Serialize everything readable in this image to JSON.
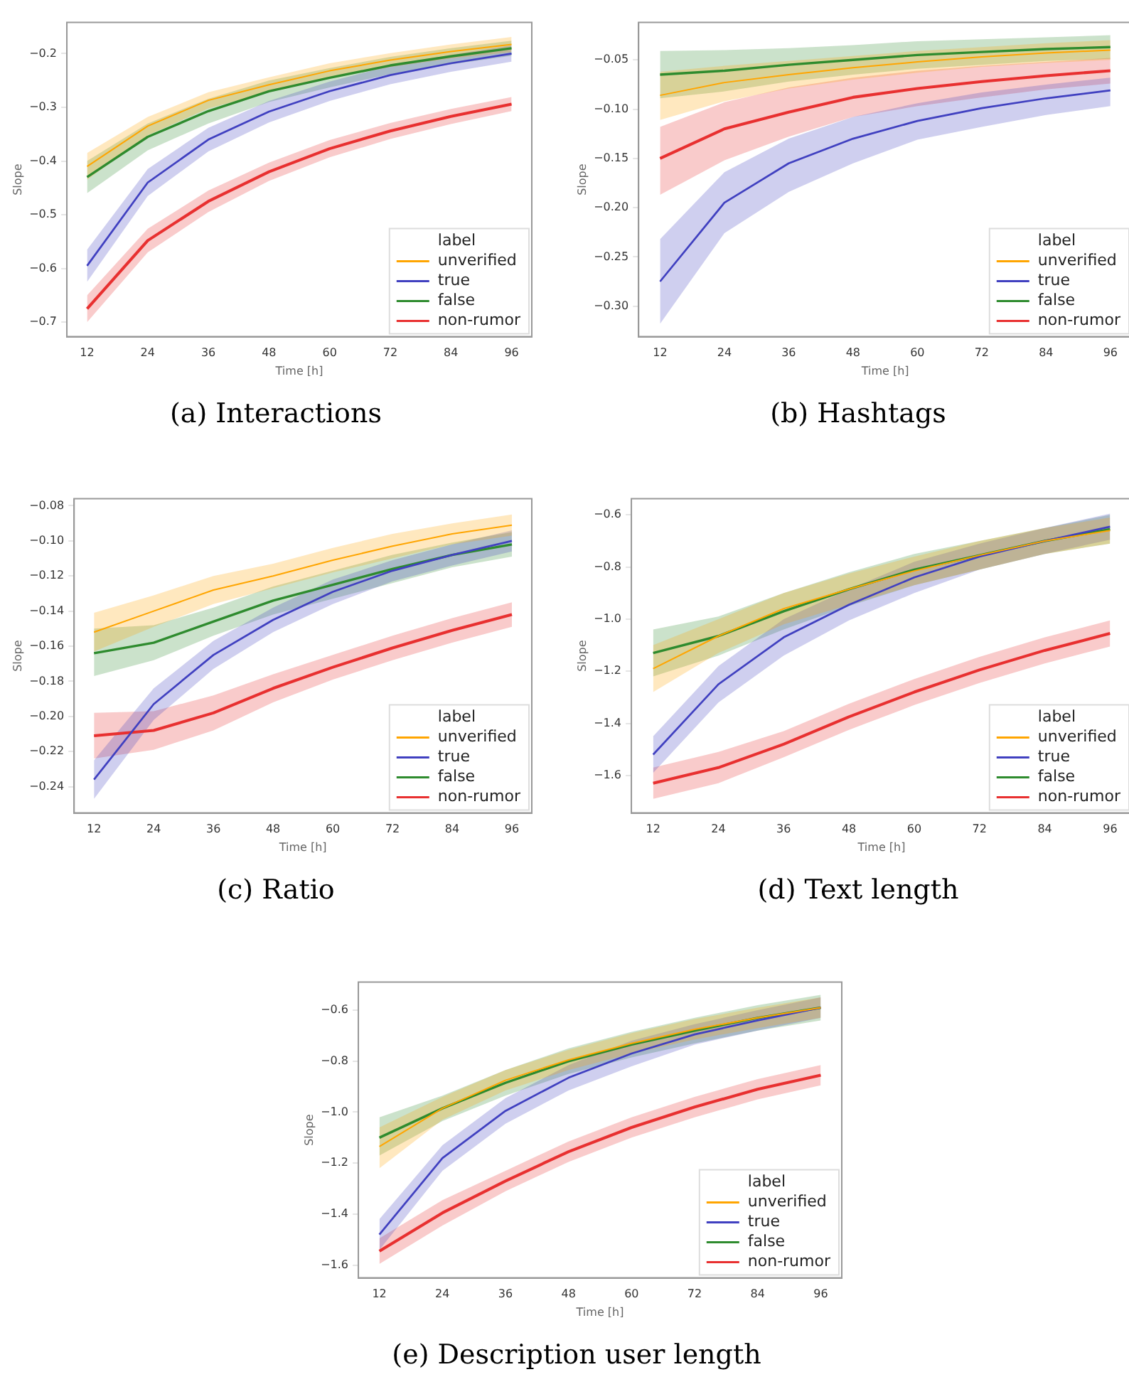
{
  "chart_data": [
    {
      "type": "line",
      "title": "(a) Interactions",
      "xlabel": "Time [h]",
      "ylabel": "Slope",
      "legend_title": "label",
      "legend": "bottom right",
      "x": [
        12,
        24,
        36,
        48,
        60,
        72,
        84,
        96
      ],
      "xlim": [
        8,
        100
      ],
      "xticks": [
        12,
        24,
        36,
        48,
        60,
        72,
        84,
        96
      ],
      "ylim": [
        -0.727,
        -0.142
      ],
      "yticks": [
        -0.7,
        -0.6,
        -0.5,
        -0.4,
        -0.3,
        -0.2
      ],
      "series": [
        {
          "name": "unverified",
          "color": "#ffa500",
          "values": [
            -0.41,
            -0.335,
            -0.287,
            -0.258,
            -0.232,
            -0.212,
            -0.196,
            -0.183
          ],
          "lower": [
            -0.435,
            -0.352,
            -0.302,
            -0.272,
            -0.246,
            -0.225,
            -0.209,
            -0.197
          ],
          "upper": [
            -0.385,
            -0.318,
            -0.272,
            -0.244,
            -0.218,
            -0.199,
            -0.183,
            -0.169
          ]
        },
        {
          "name": "true",
          "color": "#4040c0",
          "values": [
            -0.595,
            -0.44,
            -0.36,
            -0.308,
            -0.27,
            -0.24,
            -0.218,
            -0.2
          ],
          "lower": [
            -0.625,
            -0.465,
            -0.382,
            -0.328,
            -0.288,
            -0.257,
            -0.234,
            -0.215
          ],
          "upper": [
            -0.565,
            -0.415,
            -0.338,
            -0.288,
            -0.252,
            -0.223,
            -0.202,
            -0.185
          ]
        },
        {
          "name": "false",
          "color": "#2e8b2e",
          "values": [
            -0.43,
            -0.355,
            -0.307,
            -0.27,
            -0.245,
            -0.222,
            -0.205,
            -0.19
          ],
          "lower": [
            -0.46,
            -0.38,
            -0.33,
            -0.29,
            -0.263,
            -0.238,
            -0.22,
            -0.204
          ],
          "upper": [
            -0.4,
            -0.33,
            -0.284,
            -0.25,
            -0.227,
            -0.206,
            -0.19,
            -0.176
          ]
        },
        {
          "name": "non-rumor",
          "color": "#e83030",
          "values": [
            -0.675,
            -0.548,
            -0.475,
            -0.42,
            -0.377,
            -0.344,
            -0.317,
            -0.294
          ],
          "lower": [
            -0.7,
            -0.57,
            -0.495,
            -0.437,
            -0.393,
            -0.359,
            -0.331,
            -0.307
          ],
          "upper": [
            -0.65,
            -0.526,
            -0.455,
            -0.403,
            -0.361,
            -0.329,
            -0.303,
            -0.281
          ]
        }
      ]
    },
    {
      "type": "line",
      "title": "(b) Hashtags",
      "xlabel": "Time [h]",
      "ylabel": "Slope",
      "legend_title": "label",
      "legend": "bottom right",
      "x": [
        12,
        24,
        36,
        48,
        60,
        72,
        84,
        96
      ],
      "xlim": [
        8,
        100
      ],
      "xticks": [
        12,
        24,
        36,
        48,
        60,
        72,
        84,
        96
      ],
      "ylim": [
        -0.331,
        -0.012
      ],
      "yticks": [
        {
          "value": -0.3,
          "label": "−0.30"
        },
        {
          "value": -0.25,
          "label": "−0.25"
        },
        {
          "value": -0.2,
          "label": "−0.20"
        },
        {
          "value": -0.15,
          "label": "−0.15"
        },
        {
          "value": -0.1,
          "label": "−0.10"
        },
        {
          "value": -0.05,
          "label": "−0.05"
        }
      ],
      "series": [
        {
          "name": "unverified",
          "color": "#ffa500",
          "values": [
            -0.086,
            -0.073,
            -0.065,
            -0.058,
            -0.052,
            -0.047,
            -0.043,
            -0.04
          ],
          "lower": [
            -0.111,
            -0.092,
            -0.079,
            -0.07,
            -0.063,
            -0.057,
            -0.053,
            -0.05
          ],
          "upper": [
            -0.062,
            -0.056,
            -0.051,
            -0.046,
            -0.041,
            -0.037,
            -0.033,
            -0.03
          ]
        },
        {
          "name": "true",
          "color": "#4040c0",
          "values": [
            -0.275,
            -0.195,
            -0.155,
            -0.13,
            -0.112,
            -0.099,
            -0.089,
            -0.081
          ],
          "lower": [
            -0.318,
            -0.226,
            -0.184,
            -0.155,
            -0.131,
            -0.118,
            -0.106,
            -0.097
          ],
          "upper": [
            -0.232,
            -0.164,
            -0.13,
            -0.108,
            -0.094,
            -0.083,
            -0.075,
            -0.068
          ]
        },
        {
          "name": "false",
          "color": "#2e8b2e",
          "values": [
            -0.065,
            -0.061,
            -0.055,
            -0.05,
            -0.045,
            -0.042,
            -0.039,
            -0.037
          ],
          "lower": [
            -0.089,
            -0.082,
            -0.072,
            -0.065,
            -0.059,
            -0.055,
            -0.051,
            -0.049
          ],
          "upper": [
            -0.041,
            -0.04,
            -0.038,
            -0.035,
            -0.031,
            -0.029,
            -0.027,
            -0.025
          ]
        },
        {
          "name": "non-rumor",
          "color": "#e83030",
          "values": [
            -0.15,
            -0.12,
            -0.103,
            -0.088,
            -0.079,
            -0.072,
            -0.066,
            -0.061
          ],
          "lower": [
            -0.187,
            -0.152,
            -0.128,
            -0.108,
            -0.097,
            -0.088,
            -0.08,
            -0.074
          ],
          "upper": [
            -0.118,
            -0.093,
            -0.078,
            -0.068,
            -0.061,
            -0.056,
            -0.052,
            -0.048
          ]
        }
      ]
    },
    {
      "type": "line",
      "title": "(c) Ratio",
      "xlabel": "Time [h]",
      "ylabel": "Slope",
      "legend_title": "label",
      "legend": "bottom right",
      "x": [
        12,
        24,
        36,
        48,
        60,
        72,
        84,
        96
      ],
      "xlim": [
        8,
        100
      ],
      "xticks": [
        12,
        24,
        36,
        48,
        60,
        72,
        84,
        96
      ],
      "ylim": [
        -0.255,
        -0.076
      ],
      "yticks": [
        {
          "value": -0.24,
          "label": "−0.24"
        },
        {
          "value": -0.22,
          "label": "−0.22"
        },
        {
          "value": -0.2,
          "label": "−0.20"
        },
        {
          "value": -0.18,
          "label": "−0.18"
        },
        {
          "value": -0.16,
          "label": "−0.16"
        },
        {
          "value": -0.14,
          "label": "−0.14"
        },
        {
          "value": -0.12,
          "label": "−0.12"
        },
        {
          "value": -0.1,
          "label": "−0.10"
        },
        {
          "value": -0.08,
          "label": "−0.08"
        }
      ],
      "series": [
        {
          "name": "unverified",
          "color": "#ffa500",
          "values": [
            -0.152,
            -0.14,
            -0.128,
            -0.12,
            -0.111,
            -0.103,
            -0.096,
            -0.091
          ],
          "lower": [
            -0.163,
            -0.149,
            -0.136,
            -0.127,
            -0.118,
            -0.11,
            -0.102,
            -0.097
          ],
          "upper": [
            -0.141,
            -0.131,
            -0.12,
            -0.113,
            -0.104,
            -0.096,
            -0.09,
            -0.085
          ]
        },
        {
          "name": "true",
          "color": "#4040c0",
          "values": [
            -0.236,
            -0.193,
            -0.165,
            -0.145,
            -0.129,
            -0.117,
            -0.108,
            -0.1
          ],
          "lower": [
            -0.247,
            -0.202,
            -0.173,
            -0.152,
            -0.136,
            -0.123,
            -0.114,
            -0.106
          ],
          "upper": [
            -0.225,
            -0.184,
            -0.157,
            -0.138,
            -0.122,
            -0.111,
            -0.102,
            -0.094
          ]
        },
        {
          "name": "false",
          "color": "#2e8b2e",
          "values": [
            -0.164,
            -0.158,
            -0.146,
            -0.134,
            -0.125,
            -0.116,
            -0.108,
            -0.102
          ],
          "lower": [
            -0.177,
            -0.168,
            -0.154,
            -0.142,
            -0.133,
            -0.124,
            -0.115,
            -0.109
          ],
          "upper": [
            -0.15,
            -0.148,
            -0.138,
            -0.126,
            -0.117,
            -0.108,
            -0.101,
            -0.095
          ]
        },
        {
          "name": "non-rumor",
          "color": "#e83030",
          "values": [
            -0.211,
            -0.208,
            -0.198,
            -0.184,
            -0.172,
            -0.161,
            -0.151,
            -0.142
          ],
          "lower": [
            -0.224,
            -0.219,
            -0.208,
            -0.192,
            -0.179,
            -0.168,
            -0.158,
            -0.149
          ],
          "upper": [
            -0.198,
            -0.197,
            -0.188,
            -0.176,
            -0.165,
            -0.154,
            -0.144,
            -0.135
          ]
        }
      ]
    },
    {
      "type": "line",
      "title": "(d) Text length",
      "xlabel": "Time [h]",
      "ylabel": "Slope",
      "legend_title": "label",
      "legend": "bottom right",
      "x": [
        12,
        24,
        36,
        48,
        60,
        72,
        84,
        96
      ],
      "xlim": [
        8,
        100
      ],
      "xticks": [
        12,
        24,
        36,
        48,
        60,
        72,
        84,
        96
      ],
      "ylim": [
        -1.744,
        -0.538
      ],
      "yticks": [
        {
          "value": -1.6,
          "label": "−1.6"
        },
        {
          "value": -1.4,
          "label": "−1.4"
        },
        {
          "value": -1.2,
          "label": "−1.2"
        },
        {
          "value": -1.0,
          "label": "−1.0"
        },
        {
          "value": -0.8,
          "label": "−0.8"
        },
        {
          "value": -0.6,
          "label": "−0.6"
        }
      ],
      "series": [
        {
          "name": "unverified",
          "color": "#ffa500",
          "values": [
            -1.19,
            -1.065,
            -0.96,
            -0.885,
            -0.815,
            -0.755,
            -0.7,
            -0.66
          ],
          "lower": [
            -1.28,
            -1.13,
            -1.02,
            -0.945,
            -0.87,
            -0.81,
            -0.75,
            -0.71
          ],
          "upper": [
            -1.1,
            -1.0,
            -0.9,
            -0.825,
            -0.76,
            -0.7,
            -0.65,
            -0.61
          ]
        },
        {
          "name": "true",
          "color": "#4040c0",
          "values": [
            -1.52,
            -1.25,
            -1.07,
            -0.945,
            -0.84,
            -0.76,
            -0.7,
            -0.645
          ],
          "lower": [
            -1.59,
            -1.32,
            -1.14,
            -1.005,
            -0.9,
            -0.81,
            -0.75,
            -0.695
          ],
          "upper": [
            -1.45,
            -1.18,
            -1.0,
            -0.885,
            -0.78,
            -0.71,
            -0.65,
            -0.595
          ]
        },
        {
          "name": "false",
          "color": "#2e8b2e",
          "values": [
            -1.13,
            -1.065,
            -0.97,
            -0.885,
            -0.81,
            -0.755,
            -0.7,
            -0.655
          ],
          "lower": [
            -1.22,
            -1.14,
            -1.04,
            -0.95,
            -0.87,
            -0.81,
            -0.75,
            -0.71
          ],
          "upper": [
            -1.04,
            -0.99,
            -0.9,
            -0.82,
            -0.75,
            -0.7,
            -0.65,
            -0.6
          ]
        },
        {
          "name": "non-rumor",
          "color": "#e83030",
          "values": [
            -1.63,
            -1.57,
            -1.48,
            -1.375,
            -1.28,
            -1.195,
            -1.12,
            -1.055
          ],
          "lower": [
            -1.69,
            -1.63,
            -1.53,
            -1.425,
            -1.33,
            -1.245,
            -1.17,
            -1.105
          ],
          "upper": [
            -1.57,
            -1.51,
            -1.43,
            -1.325,
            -1.23,
            -1.145,
            -1.07,
            -1.005
          ]
        }
      ]
    },
    {
      "type": "line",
      "title": "(e) Description user length",
      "xlabel": "Time [h]",
      "ylabel": "Slope",
      "legend_title": "label",
      "legend": "bottom right",
      "x": [
        12,
        24,
        36,
        48,
        60,
        72,
        84,
        96
      ],
      "xlim": [
        8,
        100
      ],
      "xticks": [
        12,
        24,
        36,
        48,
        60,
        72,
        84,
        96
      ],
      "ylim": [
        -1.65,
        -0.49
      ],
      "yticks": [
        {
          "value": -1.6,
          "label": "−1.6"
        },
        {
          "value": -1.4,
          "label": "−1.4"
        },
        {
          "value": -1.2,
          "label": "−1.2"
        },
        {
          "value": -1.0,
          "label": "−1.0"
        },
        {
          "value": -0.8,
          "label": "−0.8"
        },
        {
          "value": -0.6,
          "label": "−0.6"
        }
      ],
      "series": [
        {
          "name": "unverified",
          "color": "#ffa500",
          "values": [
            -1.135,
            -0.985,
            -0.875,
            -0.795,
            -0.73,
            -0.675,
            -0.63,
            -0.59
          ],
          "lower": [
            -1.22,
            -1.03,
            -0.915,
            -0.835,
            -0.77,
            -0.715,
            -0.67,
            -0.63
          ],
          "upper": [
            -1.06,
            -0.94,
            -0.835,
            -0.755,
            -0.69,
            -0.635,
            -0.59,
            -0.55
          ]
        },
        {
          "name": "true",
          "color": "#4040c0",
          "values": [
            -1.48,
            -1.18,
            -0.995,
            -0.865,
            -0.77,
            -0.695,
            -0.64,
            -0.59
          ],
          "lower": [
            -1.54,
            -1.23,
            -1.045,
            -0.915,
            -0.82,
            -0.735,
            -0.68,
            -0.63
          ],
          "upper": [
            -1.42,
            -1.13,
            -0.945,
            -0.815,
            -0.72,
            -0.655,
            -0.6,
            -0.55
          ]
        },
        {
          "name": "false",
          "color": "#2e8b2e",
          "values": [
            -1.1,
            -0.985,
            -0.885,
            -0.8,
            -0.735,
            -0.68,
            -0.63,
            -0.59
          ],
          "lower": [
            -1.17,
            -1.035,
            -0.935,
            -0.85,
            -0.785,
            -0.73,
            -0.68,
            -0.64
          ],
          "upper": [
            -1.02,
            -0.935,
            -0.835,
            -0.75,
            -0.685,
            -0.63,
            -0.58,
            -0.54
          ]
        },
        {
          "name": "non-rumor",
          "color": "#e83030",
          "values": [
            -1.545,
            -1.395,
            -1.27,
            -1.155,
            -1.06,
            -0.98,
            -0.91,
            -0.855
          ],
          "lower": [
            -1.595,
            -1.445,
            -1.31,
            -1.195,
            -1.1,
            -1.02,
            -0.95,
            -0.895
          ],
          "upper": [
            -1.495,
            -1.345,
            -1.23,
            -1.115,
            -1.02,
            -0.94,
            -0.87,
            -0.815
          ]
        }
      ]
    }
  ]
}
